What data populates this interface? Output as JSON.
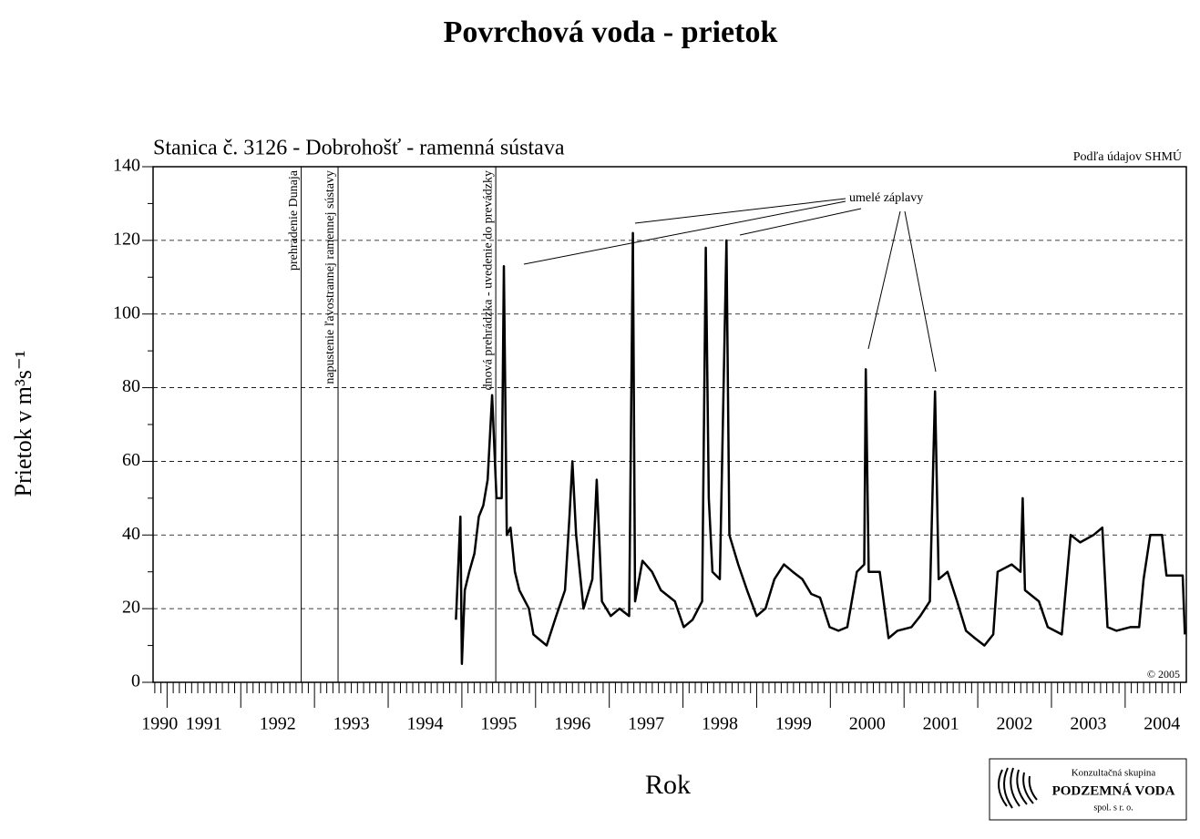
{
  "chart_data": {
    "type": "line",
    "title": "Povrchová voda -  prietok",
    "subtitle": "Stanica č. 3126 - Dobrohošť - ramenná sústava",
    "source": "Podľa údajov SHMÚ",
    "copyright": "© 2005",
    "xlabel": "Rok",
    "ylabel": "Prietok v m³s⁻¹",
    "xlim": [
      1990.81,
      2004.83
    ],
    "xticks": [
      {
        "value": 1990.9,
        "label": "1990"
      },
      {
        "value": 1991.5,
        "label": "1991"
      },
      {
        "value": 1992.5,
        "label": "1992"
      },
      {
        "value": 1993.5,
        "label": "1993"
      },
      {
        "value": 1994.5,
        "label": "1994"
      },
      {
        "value": 1995.5,
        "label": "1995"
      },
      {
        "value": 1996.5,
        "label": "1996"
      },
      {
        "value": 1997.5,
        "label": "1997"
      },
      {
        "value": 1998.5,
        "label": "1998"
      },
      {
        "value": 1999.5,
        "label": "1999"
      },
      {
        "value": 2000.5,
        "label": "2000"
      },
      {
        "value": 2001.5,
        "label": "2001"
      },
      {
        "value": 2002.5,
        "label": "2002"
      },
      {
        "value": 2003.5,
        "label": "2003"
      },
      {
        "value": 2004.5,
        "label": "2004"
      }
    ],
    "ylim": [
      0,
      140
    ],
    "yticks": [
      0,
      20,
      40,
      60,
      80,
      100,
      120,
      140
    ],
    "grid": true,
    "events": [
      {
        "x": 1992.82,
        "label": "prehradenie Dunaja"
      },
      {
        "x": 1993.32,
        "label": "napustenie ľavostrannej ramennej sústavy"
      },
      {
        "x": 1995.46,
        "label": "dnová prehrádzka - uvedenie do prevádzky"
      }
    ],
    "annotation": "umelé  záplavy",
    "series": [
      {
        "name": "Dobrohošť",
        "color": "#000000",
        "x": [
          1994.92,
          1994.98,
          1995.0,
          1995.04,
          1995.1,
          1995.17,
          1995.23,
          1995.29,
          1995.35,
          1995.41,
          1995.47,
          1995.54,
          1995.57,
          1995.61,
          1995.66,
          1995.72,
          1995.78,
          1995.91,
          1995.97,
          1996.03,
          1996.15,
          1996.28,
          1996.4,
          1996.46,
          1996.5,
          1996.55,
          1996.65,
          1996.77,
          1996.83,
          1996.9,
          1997.02,
          1997.14,
          1997.27,
          1997.32,
          1997.35,
          1997.45,
          1997.58,
          1997.7,
          1997.89,
          1998.01,
          1998.13,
          1998.26,
          1998.31,
          1998.35,
          1998.4,
          1998.5,
          1998.59,
          1998.63,
          1998.75,
          1998.87,
          1999.0,
          1999.12,
          1999.24,
          1999.37,
          1999.49,
          1999.62,
          1999.74,
          1999.86,
          1999.99,
          2000.11,
          2000.23,
          2000.36,
          2000.46,
          2000.48,
          2000.52,
          2000.67,
          2000.79,
          2000.91,
          2001.1,
          2001.22,
          2001.35,
          2001.42,
          2001.47,
          2001.59,
          2001.72,
          2001.84,
          2001.96,
          2002.09,
          2002.21,
          2002.27,
          2002.46,
          2002.58,
          2002.61,
          2002.64,
          2002.83,
          2002.95,
          2003.14,
          2003.26,
          2003.39,
          2003.57,
          2003.69,
          2003.76,
          2003.88,
          2004.07,
          2004.19,
          2004.25,
          2004.34,
          2004.5,
          2004.56,
          2004.78,
          2004.81
        ],
        "values": [
          17,
          45,
          5,
          25,
          30,
          35,
          45,
          48,
          55,
          78,
          50,
          50,
          113,
          40,
          42,
          30,
          25,
          20,
          13,
          12,
          10,
          18,
          25,
          45,
          60,
          40,
          20,
          28,
          55,
          22,
          18,
          20,
          18,
          122,
          22,
          33,
          30,
          25,
          22,
          15,
          17,
          22,
          118,
          50,
          30,
          28,
          120,
          40,
          32,
          25,
          18,
          20,
          28,
          32,
          30,
          28,
          24,
          23,
          15,
          14,
          15,
          30,
          32,
          85,
          30,
          30,
          12,
          14,
          15,
          18,
          22,
          79,
          28,
          30,
          22,
          14,
          12,
          10,
          13,
          30,
          32,
          30,
          50,
          25,
          22,
          15,
          13,
          40,
          38,
          40,
          42,
          15,
          14,
          15,
          15,
          28,
          40,
          40,
          29,
          29,
          13
        ]
      }
    ],
    "logo": {
      "line1": "Konzultačná skupina",
      "line2": "PODZEMNÁ VODA",
      "line3": "spol. s r. o."
    }
  }
}
